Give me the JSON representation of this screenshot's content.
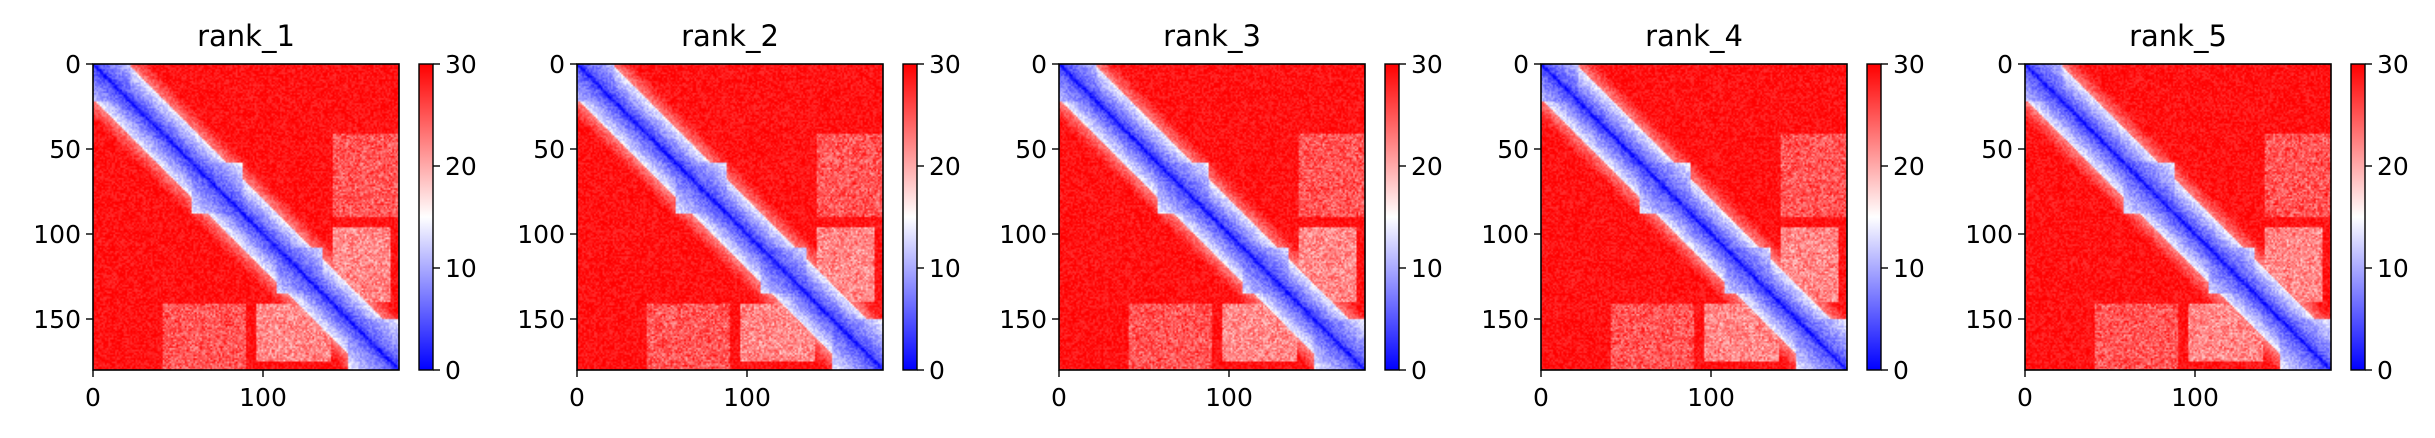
{
  "colors": {
    "background": "#ffffff",
    "low": "#0000ff",
    "mid": "#ffffff",
    "high": "#ff0000",
    "axis": "#000000"
  },
  "chart_data": [
    {
      "type": "heatmap",
      "title": "rank_1",
      "matrix_size": 180,
      "xticks": [
        0,
        100
      ],
      "yticks": [
        0,
        50,
        100,
        150
      ],
      "colorbar": {
        "min": 0,
        "max": 30,
        "ticks": [
          0,
          10,
          20,
          30
        ],
        "cmap": "bwr"
      },
      "domains": [
        [
          0,
          22
        ],
        [
          58,
          88
        ],
        [
          108,
          135
        ],
        [
          150,
          180
        ]
      ],
      "diagonal_value": 0.5,
      "background_value": 29
    },
    {
      "type": "heatmap",
      "title": "rank_2",
      "matrix_size": 180,
      "xticks": [
        0,
        100
      ],
      "yticks": [
        0,
        50,
        100,
        150
      ],
      "colorbar": {
        "min": 0,
        "max": 30,
        "ticks": [
          0,
          10,
          20,
          30
        ],
        "cmap": "bwr"
      },
      "domains": [
        [
          0,
          22
        ],
        [
          58,
          88
        ],
        [
          108,
          135
        ],
        [
          150,
          180
        ]
      ],
      "diagonal_value": 0.5,
      "background_value": 29
    },
    {
      "type": "heatmap",
      "title": "rank_3",
      "matrix_size": 180,
      "xticks": [
        0,
        100
      ],
      "yticks": [
        0,
        50,
        100,
        150
      ],
      "colorbar": {
        "min": 0,
        "max": 30,
        "ticks": [
          0,
          10,
          20,
          30
        ],
        "cmap": "bwr"
      },
      "domains": [
        [
          0,
          22
        ],
        [
          58,
          88
        ],
        [
          108,
          135
        ],
        [
          150,
          180
        ]
      ],
      "diagonal_value": 0.5,
      "background_value": 29
    },
    {
      "type": "heatmap",
      "title": "rank_4",
      "matrix_size": 180,
      "xticks": [
        0,
        100
      ],
      "yticks": [
        0,
        50,
        100,
        150
      ],
      "colorbar": {
        "min": 0,
        "max": 30,
        "ticks": [
          0,
          10,
          20,
          30
        ],
        "cmap": "bwr"
      },
      "domains": [
        [
          0,
          22
        ],
        [
          58,
          88
        ],
        [
          108,
          135
        ],
        [
          150,
          180
        ]
      ],
      "diagonal_value": 0.5,
      "background_value": 29
    },
    {
      "type": "heatmap",
      "title": "rank_5",
      "matrix_size": 180,
      "xticks": [
        0,
        100
      ],
      "yticks": [
        0,
        50,
        100,
        150
      ],
      "colorbar": {
        "min": 0,
        "max": 30,
        "ticks": [
          0,
          10,
          20,
          30
        ],
        "cmap": "bwr"
      },
      "domains": [
        [
          0,
          22
        ],
        [
          58,
          88
        ],
        [
          108,
          135
        ],
        [
          150,
          180
        ]
      ],
      "diagonal_value": 0.5,
      "background_value": 29
    }
  ]
}
